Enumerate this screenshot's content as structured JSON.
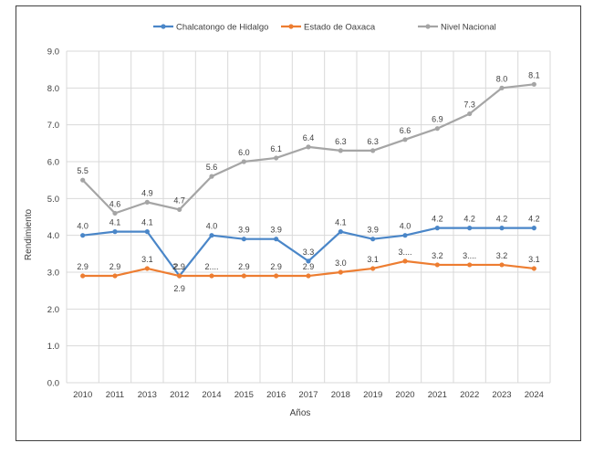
{
  "chart_data": {
    "type": "line",
    "title": "",
    "xlabel": "Años",
    "ylabel": "Rendimiento",
    "categories": [
      "2010",
      "2011",
      "2013",
      "2012",
      "2014",
      "2015",
      "2016",
      "2017",
      "2018",
      "2019",
      "2020",
      "2021",
      "2022",
      "2023",
      "2024"
    ],
    "ylim": [
      0,
      9
    ],
    "ytick_step": 1,
    "ytick_labels": [
      "0.0",
      "1.0",
      "2.0",
      "3.0",
      "4.0",
      "5.0",
      "6.0",
      "7.0",
      "8.0",
      "9.0"
    ],
    "grid": true,
    "legend_position": "top",
    "series": [
      {
        "name": "Chalcatongo de Hidalgo",
        "color": "#4a86c8",
        "values": [
          4.0,
          4.1,
          4.1,
          2.9,
          4.0,
          3.9,
          3.9,
          3.3,
          4.1,
          3.9,
          4.0,
          4.2,
          4.2,
          4.2,
          4.2
        ],
        "labels": [
          "4.0",
          "4.1",
          "4.1",
          "2....",
          "4.0",
          "3.9",
          "3.9",
          "3.3",
          "4.1",
          "3.9",
          "4.0",
          "4.2",
          "4.2",
          "4.2",
          "4.2"
        ]
      },
      {
        "name": "Estado de Oaxaca",
        "color": "#ed7d31",
        "values": [
          2.9,
          2.9,
          3.1,
          2.9,
          2.9,
          2.9,
          2.9,
          2.9,
          3.0,
          3.1,
          3.3,
          3.2,
          3.2,
          3.2,
          3.1
        ],
        "labels": [
          "2.9",
          "2.9",
          "3.1",
          "2.9",
          "2....",
          "2.9",
          "2.9",
          "2.9",
          "3.0",
          "3.1",
          "3....",
          "3.2",
          "3....",
          "3.2",
          "3.1"
        ]
      },
      {
        "name": "Nivel Nacional",
        "color": "#a5a5a5",
        "values": [
          5.5,
          4.6,
          4.9,
          4.7,
          5.6,
          6.0,
          6.1,
          6.4,
          6.3,
          6.3,
          6.6,
          6.9,
          7.3,
          8.0,
          8.1
        ],
        "labels": [
          "5.5",
          "4.6",
          "4.9",
          "4.7",
          "5.6",
          "6.0",
          "6.1",
          "6.4",
          "6.3",
          "6.3",
          "6.6",
          "6.9",
          "7.3",
          "8.0",
          "8.1"
        ]
      }
    ]
  }
}
